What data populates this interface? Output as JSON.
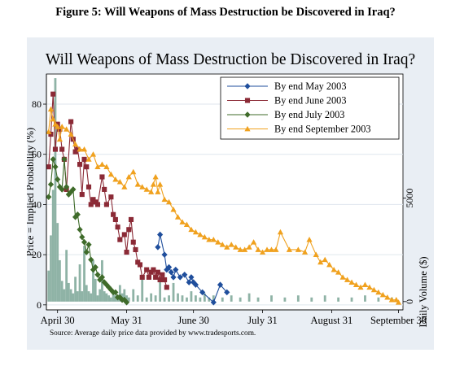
{
  "figure_heading": "Figure 5: Will Weapons of Mass Destruction be Discovered in Iraq?",
  "colors": {
    "panel_bg": "#e9eef4",
    "plot_bg": "#ffffff",
    "gridline": "#dfe6ee",
    "volume": "#8fb3a6",
    "may": "#1f4e9c",
    "june": "#8b2a36",
    "july": "#3f6b2a",
    "september": "#f0a11e"
  },
  "chart_data": {
    "type": "line",
    "title": "Will Weapons of Mass Destruction be Discovered in Iraq?",
    "ylabel": "Price = Implied Probability (%)",
    "y2label": "Daily Volume ($)",
    "source_note": "Source: Average daily price data provided by www.tradesports.com.",
    "x_tick_labels": [
      "April 30",
      "May 31",
      "June 30",
      "July 31",
      "August 31",
      "September 30"
    ],
    "x_ticks_day": [
      0,
      31,
      61,
      92,
      123,
      153
    ],
    "xlim_day": [
      -5,
      155
    ],
    "y_ticks": [
      0,
      20,
      40,
      60,
      80
    ],
    "ylim": [
      -2,
      92
    ],
    "y2_ticks": [
      0,
      5000
    ],
    "y2_tick_labels": [
      "0",
      "5000"
    ],
    "y2lim": [
      -400,
      11000
    ],
    "legend_position": "top-right",
    "grid": true,
    "series": [
      {
        "name": "By end May 2003",
        "marker": "diamond",
        "color_key": "may",
        "x_day": [
          45,
          46,
          48,
          49,
          50,
          51,
          52,
          53,
          55,
          57,
          59,
          60,
          61,
          62,
          65,
          70,
          73,
          76
        ],
        "y": [
          23,
          28,
          20,
          14,
          15,
          13,
          11,
          14,
          11,
          12,
          9,
          11,
          9,
          8,
          5,
          1,
          8,
          5
        ]
      },
      {
        "name": "By end June 2003",
        "marker": "square",
        "color_key": "june",
        "x_day": [
          -4,
          -3,
          -2,
          -1,
          0,
          1,
          2,
          3,
          4,
          6,
          7,
          8,
          9,
          10,
          11,
          12,
          13,
          14,
          15,
          16,
          17,
          18,
          20,
          21,
          22,
          24,
          25,
          26,
          27,
          28,
          30,
          31,
          32,
          33,
          34,
          35,
          36,
          37,
          38,
          40,
          41,
          42,
          43,
          44,
          45,
          46,
          47,
          48,
          49
        ],
        "y": [
          55,
          68,
          84,
          62,
          72,
          70,
          62,
          58,
          46,
          73,
          66,
          61,
          62,
          56,
          44,
          58,
          55,
          47,
          40,
          42,
          41,
          40,
          51,
          46,
          40,
          43,
          36,
          34,
          31,
          26,
          28,
          21,
          30,
          34,
          25,
          22,
          17,
          16,
          11,
          14,
          11,
          13,
          14,
          11,
          13,
          10,
          12,
          10,
          7
        ]
      },
      {
        "name": "By end July 2003",
        "marker": "diamond",
        "color_key": "july",
        "x_day": [
          -4,
          -3,
          -2,
          -1,
          0,
          1,
          2,
          3,
          4,
          5,
          6,
          7,
          8,
          9,
          10,
          11,
          12,
          13,
          14,
          15,
          16,
          17,
          18,
          19,
          20,
          21,
          22,
          23,
          24,
          25,
          26,
          27,
          28,
          29,
          30,
          31
        ],
        "y": [
          43,
          48,
          58,
          55,
          50,
          47,
          46,
          58,
          47,
          44,
          45,
          46,
          35,
          36,
          30,
          27,
          25,
          21,
          24,
          18,
          14,
          15,
          12,
          10,
          11,
          9,
          8,
          7,
          6,
          5,
          5,
          3,
          3,
          2,
          2,
          1
        ]
      },
      {
        "name": "By end September 2003",
        "marker": "triangle",
        "color_key": "september",
        "x_day": [
          -4,
          -3,
          -2,
          -1,
          0,
          1,
          2,
          4,
          6,
          8,
          10,
          12,
          14,
          16,
          18,
          20,
          22,
          24,
          26,
          28,
          30,
          32,
          34,
          36,
          38,
          40,
          42,
          43,
          44,
          45,
          46,
          48,
          50,
          52,
          54,
          56,
          58,
          60,
          62,
          64,
          66,
          68,
          70,
          72,
          74,
          76,
          78,
          80,
          82,
          84,
          86,
          88,
          90,
          92,
          94,
          96,
          98,
          100,
          104,
          108,
          111,
          113,
          116,
          118,
          120,
          122,
          124,
          126,
          128,
          130,
          132,
          134,
          136,
          138,
          140,
          142,
          144,
          146,
          148,
          150,
          152,
          153
        ],
        "y": [
          69,
          78,
          74,
          72,
          71,
          66,
          71,
          70,
          68,
          64,
          62,
          62,
          58,
          60,
          55,
          56,
          55,
          52,
          50,
          49,
          47,
          51,
          53,
          48,
          47,
          46,
          45,
          48,
          51,
          45,
          48,
          42,
          41,
          38,
          35,
          33,
          32,
          30,
          29,
          28,
          27,
          26,
          26,
          25,
          24,
          23,
          24,
          23,
          22,
          22,
          23,
          25,
          22,
          21,
          22,
          22,
          22,
          29,
          22,
          22,
          21,
          26,
          20,
          17,
          18,
          16,
          14,
          13,
          11,
          10,
          9,
          8,
          7,
          8,
          7,
          6,
          5,
          4,
          3,
          2,
          2,
          1
        ]
      }
    ],
    "volume": {
      "x_day": [
        -4,
        -3,
        -2,
        -1,
        0,
        1,
        2,
        3,
        4,
        5,
        6,
        7,
        8,
        9,
        10,
        11,
        12,
        13,
        14,
        15,
        16,
        17,
        18,
        19,
        20,
        21,
        22,
        23,
        24,
        25,
        26,
        27,
        28,
        29,
        30,
        31,
        32,
        34,
        36,
        38,
        40,
        42,
        44,
        46,
        48,
        50,
        52,
        54,
        56,
        58,
        60,
        62,
        64,
        66,
        68,
        70,
        74,
        78,
        82,
        86,
        90,
        96,
        102,
        108,
        114,
        120,
        126,
        132,
        138,
        144,
        150
      ],
      "y": [
        1500,
        3200,
        5400,
        10800,
        3800,
        2000,
        1000,
        600,
        2500,
        900,
        600,
        400,
        1200,
        500,
        1800,
        500,
        2700,
        800,
        500,
        400,
        2000,
        1100,
        300,
        600,
        2000,
        500,
        400,
        300,
        200,
        500,
        300,
        200,
        800,
        400,
        600,
        300,
        200,
        600,
        300,
        1200,
        200,
        400,
        300,
        1000,
        200,
        300,
        900,
        400,
        300,
        200,
        500,
        300,
        200,
        400,
        200,
        300,
        200,
        300,
        200,
        400,
        200,
        300,
        200,
        300,
        200,
        300,
        200,
        200,
        300,
        200,
        200
      ]
    }
  }
}
